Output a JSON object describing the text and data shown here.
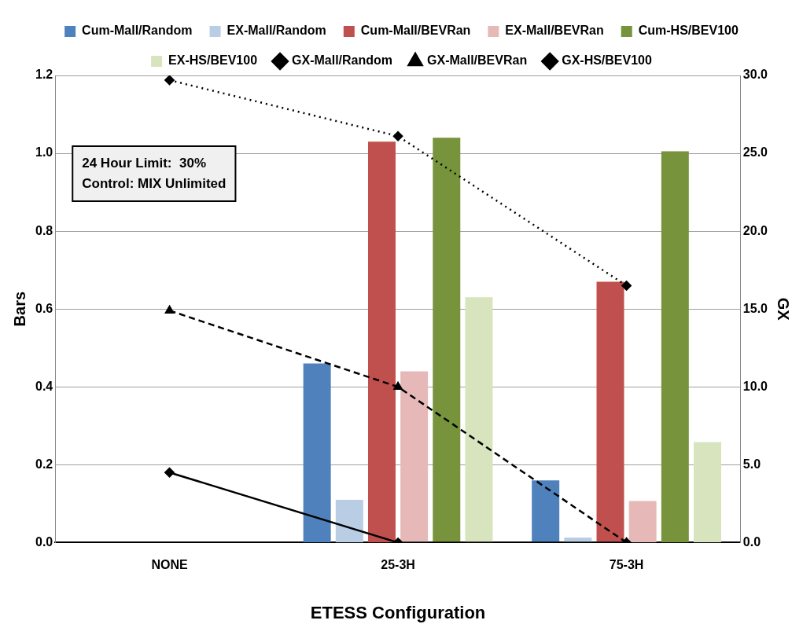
{
  "chart_data": {
    "type": "bar",
    "xlabel": "ETESS Configuration",
    "ylabel": "Bars",
    "y2label": "GX",
    "categories": [
      "NONE",
      "25-3H",
      "75-3H"
    ],
    "series": [
      {
        "name": "Cum-Mall/Random",
        "color": "#4f81bd",
        "values": [
          null,
          0.46,
          0.16
        ]
      },
      {
        "name": "EX-Mall/Random",
        "color": "#b9cde5",
        "values": [
          null,
          0.11,
          0.013
        ]
      },
      {
        "name": "Cum-Mall/BEVRan",
        "color": "#c0504d",
        "values": [
          null,
          1.03,
          0.67
        ]
      },
      {
        "name": "EX-Mall/BEVRan",
        "color": "#e6b9b8",
        "values": [
          null,
          0.44,
          0.107
        ]
      },
      {
        "name": "Cum-HS/BEV100",
        "color": "#77933c",
        "values": [
          null,
          1.04,
          1.005
        ]
      },
      {
        "name": "EX-HS/BEV100",
        "color": "#d7e4bd",
        "values": [
          null,
          0.63,
          0.258
        ]
      },
      {
        "name": "GX-Mall/Random",
        "type": "line",
        "axis": "y2",
        "color": "#000000",
        "marker": "diamond",
        "line_style": "solid",
        "values": [
          4.5,
          0,
          0
        ]
      },
      {
        "name": "GX-Mall/BEVRan",
        "type": "line",
        "axis": "y2",
        "color": "#000000",
        "marker": "triangle",
        "line_style": "dashed",
        "values": [
          14.9,
          10.0,
          0
        ]
      },
      {
        "name": "GX-HS/BEV100",
        "type": "line",
        "axis": "y2",
        "color": "#000000",
        "marker": "diamond",
        "line_style": "dotted",
        "values": [
          29.7,
          26.1,
          16.5
        ]
      }
    ],
    "ylim": [
      0,
      1.2
    ],
    "yticks": [
      {
        "value": 0,
        "label": "0.0"
      },
      {
        "value": 0.2,
        "label": "0.2"
      },
      {
        "value": 0.4,
        "label": "0.4"
      },
      {
        "value": 0.6,
        "label": "0.6"
      },
      {
        "value": 0.8,
        "label": "0.8"
      },
      {
        "value": 1,
        "label": "1.0"
      },
      {
        "value": 1.2,
        "label": "1.2"
      }
    ],
    "y2lim": [
      0,
      30
    ],
    "y2ticks": [
      {
        "value": 0,
        "label": "0.0"
      },
      {
        "value": 5,
        "label": "5.0"
      },
      {
        "value": 10,
        "label": "10.0"
      },
      {
        "value": 15,
        "label": "15.0"
      },
      {
        "value": 20,
        "label": "20.0"
      },
      {
        "value": 25,
        "label": "25.0"
      },
      {
        "value": 30,
        "label": "30.0"
      }
    ],
    "grid": "y",
    "legend": "top",
    "annotations": [
      "24 Hour Limit:  30%",
      "Control: MIX Unlimited"
    ]
  }
}
